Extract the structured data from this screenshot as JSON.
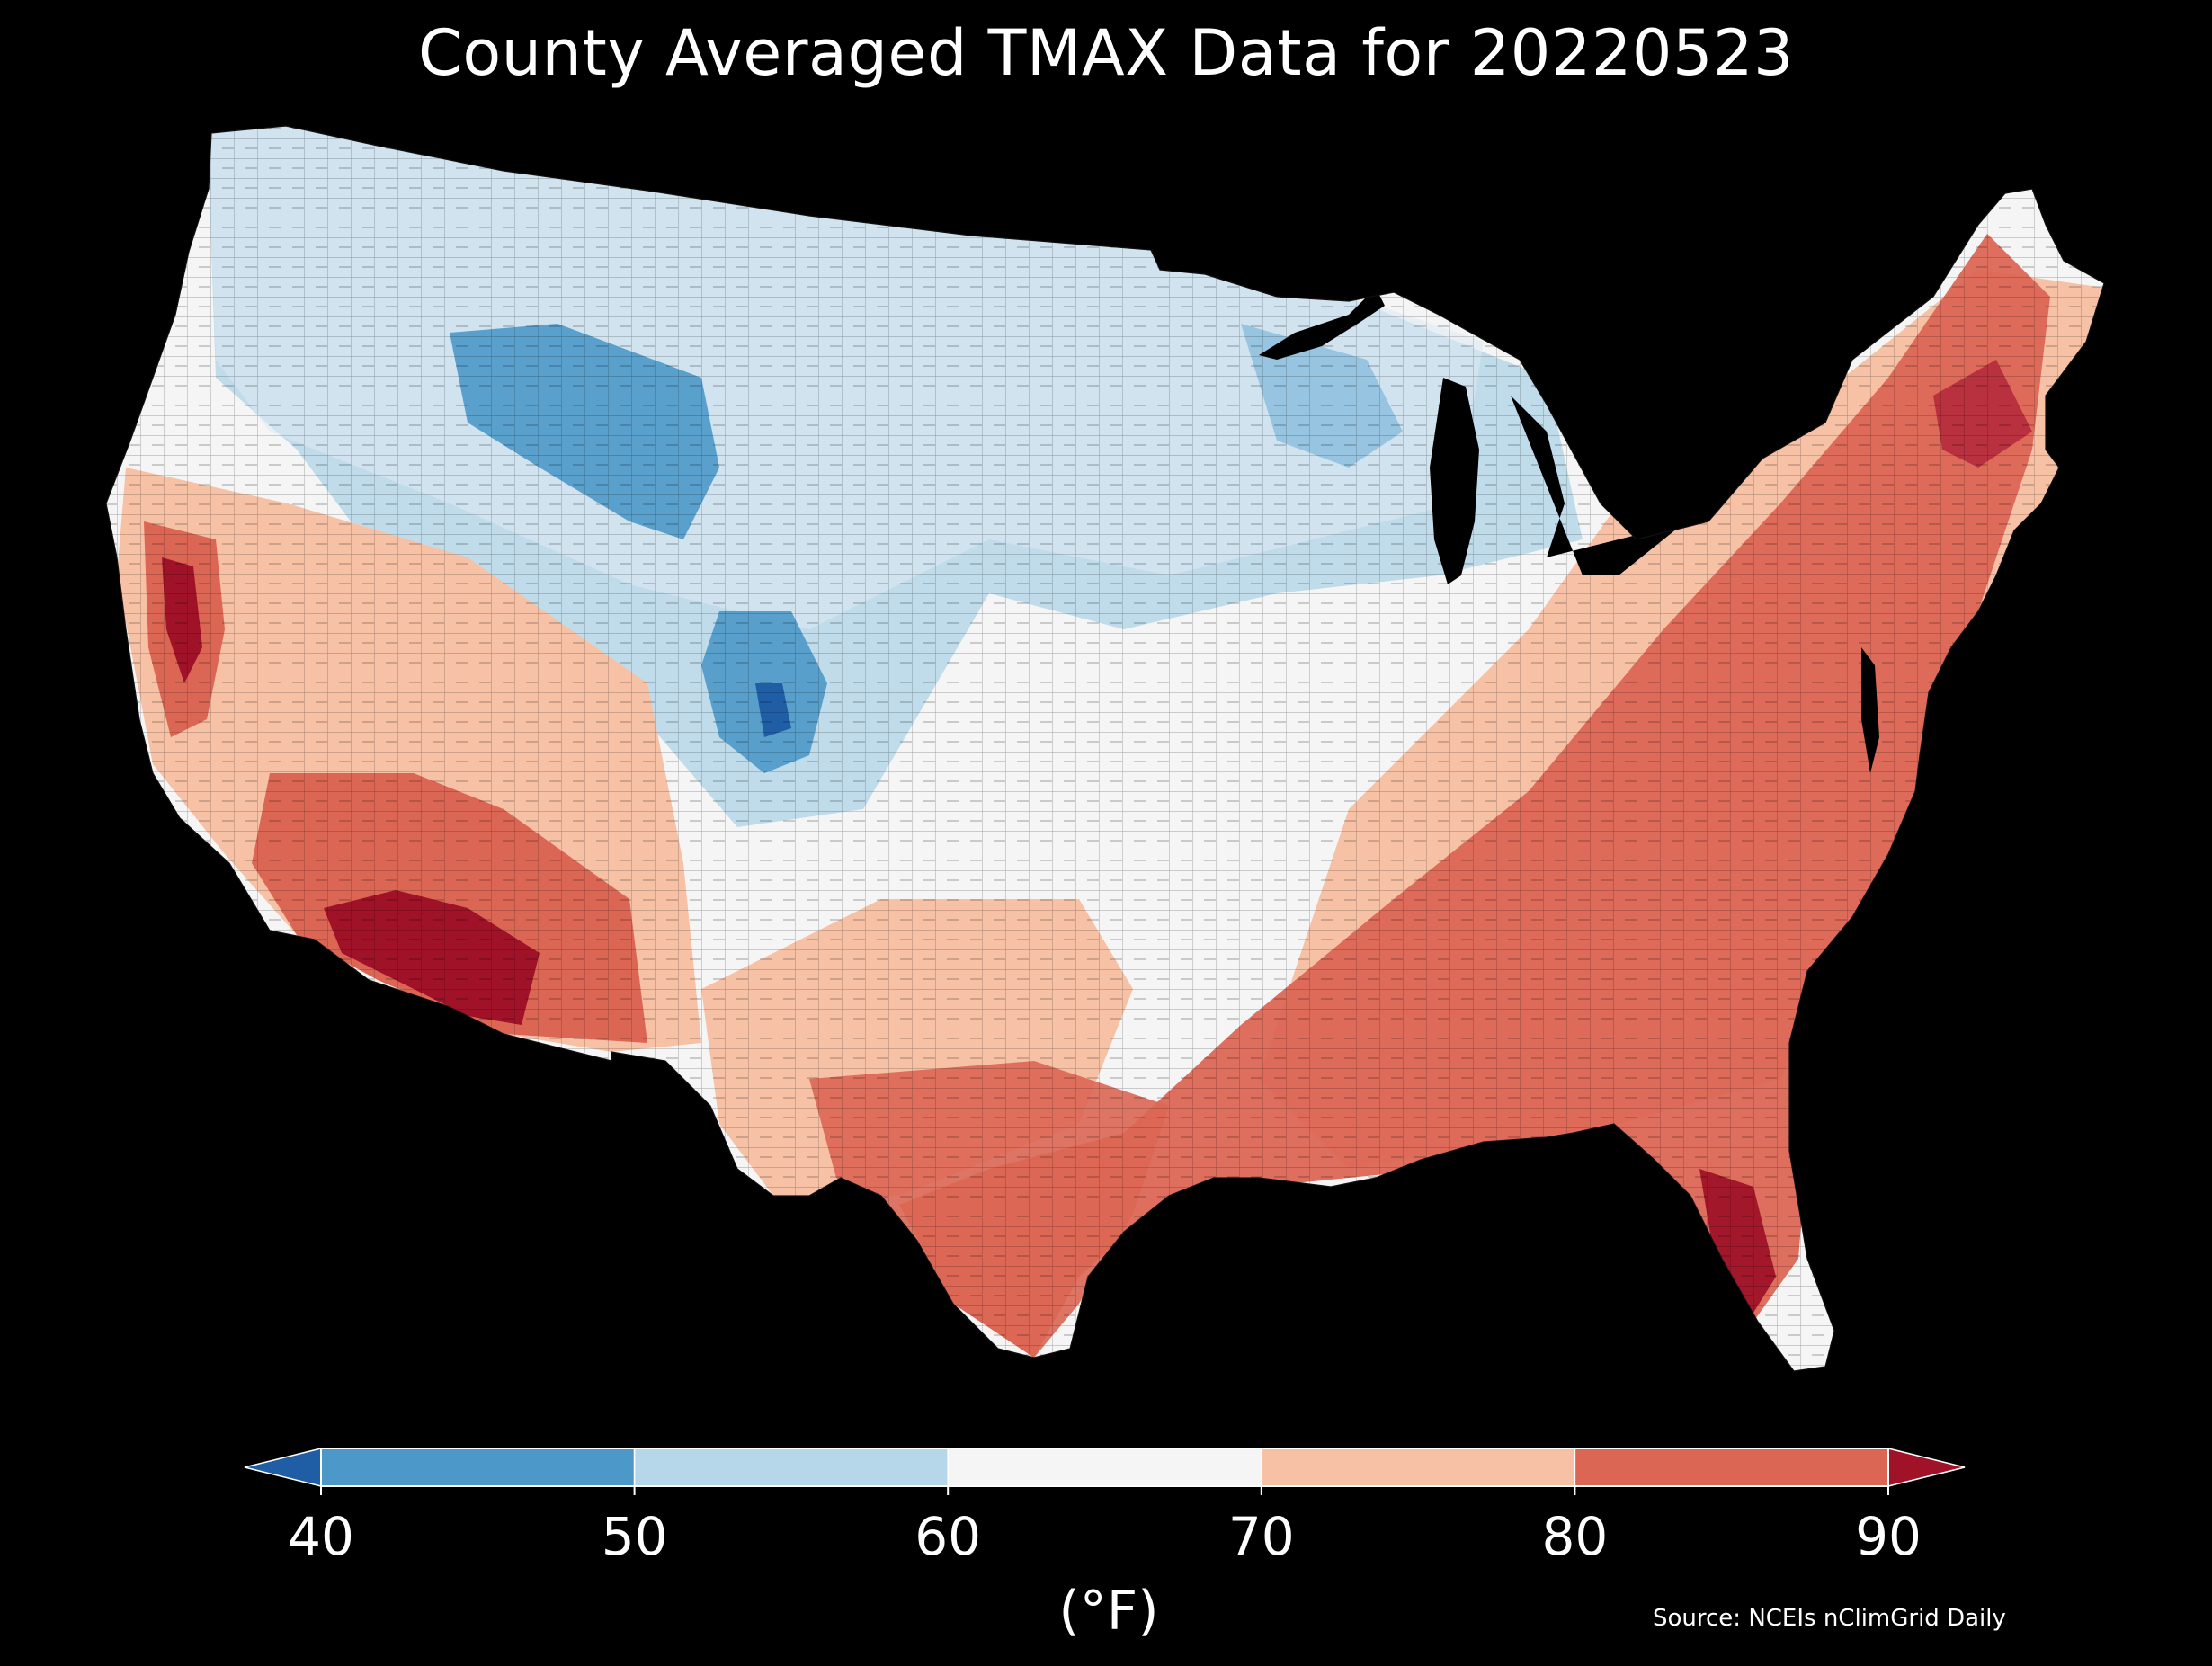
{
  "title": "County Averaged TMAX Data for 20220523",
  "colorbar": {
    "ticks": [
      "40",
      "50",
      "60",
      "70",
      "80",
      "90"
    ],
    "unit": "(°F)",
    "bins": [
      {
        "from": null,
        "to": 40,
        "color": "#1f5ea4"
      },
      {
        "from": 40,
        "to": 50,
        "color": "#4c98c8"
      },
      {
        "from": 50,
        "to": 60,
        "color": "#b6d7e9"
      },
      {
        "from": 60,
        "to": 70,
        "color": "#f5f5f5"
      },
      {
        "from": 70,
        "to": 80,
        "color": "#f7c1a6"
      },
      {
        "from": 80,
        "to": 90,
        "color": "#dc6654"
      },
      {
        "from": 90,
        "to": null,
        "color": "#9f1228"
      }
    ]
  },
  "source": "Source: NCEIs nClimGrid Daily",
  "regions": {
    "cool_rockies_upper_midwest": "#b6d7e9",
    "coldest_core": "#4c98c8",
    "mild_plains": "#f5f5f5",
    "warm_west_midwest": "#f7c1a6",
    "hot_south_east": "#dc6654",
    "hottest_southwest_florida": "#9f1228"
  }
}
